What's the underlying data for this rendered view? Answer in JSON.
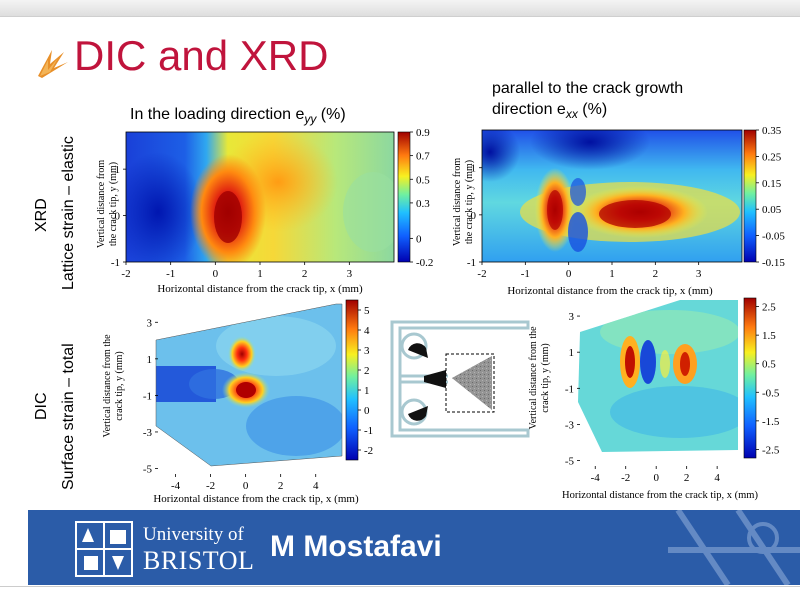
{
  "slide": {
    "title": "DIC and XRD",
    "row_labels": {
      "xrd_method": "XRD",
      "xrd_desc": "Lattice strain – elastic",
      "dic_method": "DIC",
      "dic_desc": "Surface strain – total"
    },
    "captions": {
      "eyy_main": "In the loading direction e",
      "eyy_sub": "yy",
      "eyy_unit": " (%)",
      "exx_line1": "parallel to the crack growth",
      "exx_line2_main": "direction e",
      "exx_sub": "xx",
      "exx_unit": " (%)"
    },
    "footer": {
      "university_line1": "University of",
      "university_line2": "BRISTOL",
      "author": "M Mostafavi"
    },
    "colors": {
      "title": "#c0143c",
      "footer_bg": "#2b5ca8",
      "specimen_outline": "#a8c8d0"
    },
    "icons": [
      "logo-mark-icon",
      "university-crest-icon",
      "specimen-schematic-icon"
    ]
  },
  "chart_data": [
    {
      "type": "heatmap",
      "name": "xrd-eyy",
      "xlabel": "Horizontal distance from the crack tip, x (mm)",
      "ylabel": "Vertical distance from the crack tip, y (mm)",
      "xlim": [
        -2,
        4
      ],
      "ylim": [
        -1,
        1.8
      ],
      "xticks": [
        "-2",
        "-1",
        "0",
        "1",
        "2",
        "3"
      ],
      "xtick_values": [
        -2,
        -1,
        0,
        1,
        2,
        3
      ],
      "yticks": [
        "1",
        "0",
        "-1"
      ],
      "ytick_values": [
        1,
        0,
        -1
      ],
      "colorbar": {
        "ticks": [
          "0.9",
          "0.7",
          "0.5",
          "0.3",
          "0",
          "-0.2"
        ],
        "tick_values": [
          0.9,
          0.7,
          0.5,
          0.3,
          0,
          -0.2
        ],
        "range": [
          -0.2,
          0.9
        ]
      },
      "features": [
        {
          "x": 0.2,
          "y": 0.0,
          "value": 0.9
        },
        {
          "x": -1.5,
          "y": 0.0,
          "value": -0.2
        },
        {
          "x": 1.3,
          "y": 0.9,
          "value": 0.6
        },
        {
          "x": 3.5,
          "y": 0.5,
          "value": 0.3
        }
      ]
    },
    {
      "type": "heatmap",
      "name": "xrd-exx",
      "xlabel": "Horizontal distance from the crack tip, x (mm)",
      "ylabel": "Vertical distance from the crack tip, y (mm)",
      "xlim": [
        -2,
        4
      ],
      "ylim": [
        -1,
        1.8
      ],
      "xticks": [
        "-2",
        "-1",
        "0",
        "1",
        "2",
        "3"
      ],
      "xtick_values": [
        -2,
        -1,
        0,
        1,
        2,
        3
      ],
      "yticks": [
        "1",
        "0",
        "-1"
      ],
      "ytick_values": [
        1,
        0,
        -1
      ],
      "colorbar": {
        "ticks": [
          "0.35",
          "0.25",
          "0.15",
          "0.05",
          "-0.05",
          "-0.15"
        ],
        "tick_values": [
          0.35,
          0.25,
          0.15,
          0.05,
          -0.05,
          -0.15
        ],
        "range": [
          -0.15,
          0.35
        ]
      },
      "features": [
        {
          "x": -0.5,
          "y": 0.0,
          "value": 0.33
        },
        {
          "x": 1.0,
          "y": 0.0,
          "value": 0.35
        },
        {
          "x": 0.0,
          "y": 0.0,
          "value": -0.12
        },
        {
          "x": 0.0,
          "y": 1.5,
          "value": -0.15
        }
      ]
    },
    {
      "type": "heatmap",
      "name": "dic-eyy",
      "xlabel": "Horizontal distance from the crack tip, x (mm)",
      "ylabel": "Vertical distance from the crack tip, y (mm)",
      "xlim": [
        -5,
        5.5
      ],
      "ylim": [
        -5.3,
        4
      ],
      "xticks": [
        "-4",
        "-2",
        "0",
        "2",
        "4"
      ],
      "xtick_values": [
        -4,
        -2,
        0,
        2,
        4
      ],
      "yticks": [
        "3",
        "1",
        "-1",
        "-3",
        "-5"
      ],
      "ytick_values": [
        3,
        1,
        -1,
        -3,
        -5
      ],
      "colorbar": {
        "ticks": [
          "5",
          "4",
          "3",
          "2",
          "1",
          "0",
          "-1",
          "-2"
        ],
        "tick_values": [
          5,
          4,
          3,
          2,
          1,
          0,
          -1,
          -2
        ],
        "range": [
          -2.5,
          5.5
        ]
      },
      "features": [
        {
          "x": 0.5,
          "y": -1.0,
          "value": 5
        },
        {
          "x": 0.0,
          "y": 1.5,
          "value": 3
        },
        {
          "x": -2.5,
          "y": 0.0,
          "value": -2
        }
      ]
    },
    {
      "type": "heatmap",
      "name": "dic-exx",
      "xlabel": "Horizontal distance from the crack tip, x (mm)",
      "ylabel": "Vertical distance from the crack tip, y (mm)",
      "xlim": [
        -5,
        5.5
      ],
      "ylim": [
        -5.3,
        4
      ],
      "xticks": [
        "-4",
        "-2",
        "0",
        "2",
        "4"
      ],
      "xtick_values": [
        -4,
        -2,
        0,
        2,
        4
      ],
      "yticks": [
        "3",
        "1",
        "-1",
        "-3",
        "-5"
      ],
      "ytick_values": [
        3,
        1,
        -1,
        -3,
        -5
      ],
      "colorbar": {
        "ticks": [
          "2.5",
          "1.5",
          "0.5",
          "-0.5",
          "-1.5",
          "-2.5"
        ],
        "tick_values": [
          2.5,
          1.5,
          0.5,
          -0.5,
          -1.5,
          -2.5
        ],
        "range": [
          -2.8,
          2.8
        ]
      },
      "features": [
        {
          "x": -1.0,
          "y": 0.0,
          "value": 2.5
        },
        {
          "x": 2.0,
          "y": 0.0,
          "value": 2.0
        },
        {
          "x": 0.0,
          "y": 0.0,
          "value": -2.5
        }
      ]
    }
  ]
}
